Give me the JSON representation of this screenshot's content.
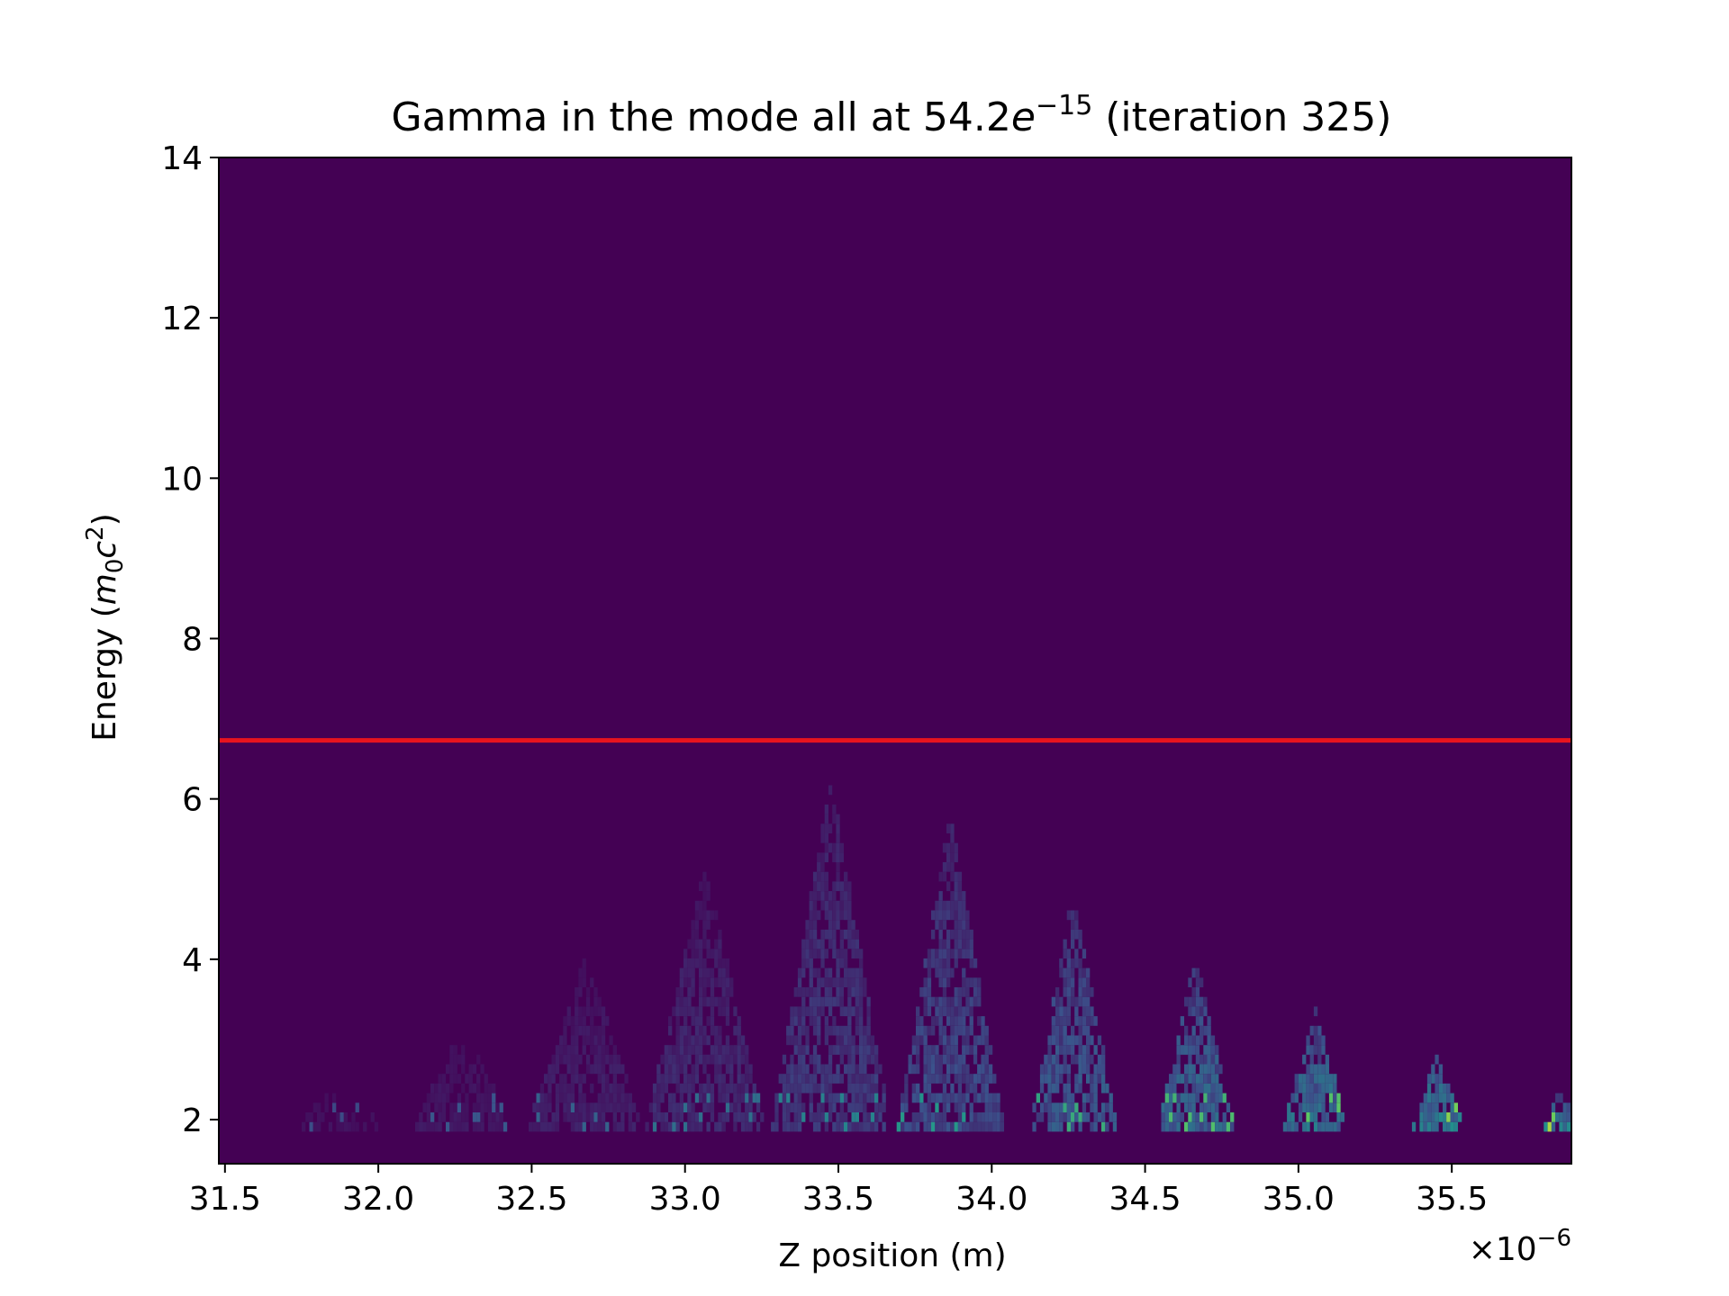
{
  "chart_data": {
    "type": "heatmap",
    "title": "Gamma in the mode all at 54.2e−15 (iteration 325)",
    "title_parts": {
      "prefix": "Gamma in the mode all at 54.2",
      "e": "e",
      "exp": "−15",
      "suffix": " (iteration 325)"
    },
    "xlabel": "Z position (m)",
    "ylabel": "Energy (m0c2)",
    "ylabel_parts": {
      "prefix": "Energy (",
      "m": "m",
      "msub": "0",
      "c": "c",
      "csup": "2",
      "suffix": ")"
    },
    "x_offset_label": "×10⁻⁶",
    "x_offset_parts": {
      "base": "×10",
      "exp": "−6"
    },
    "xlim": [
      31.48,
      35.89
    ],
    "ylim": [
      1.45,
      14.0
    ],
    "x_ticks": [
      "31.5",
      "32.0",
      "32.5",
      "33.0",
      "33.5",
      "34.0",
      "34.5",
      "35.0",
      "35.5"
    ],
    "x_tick_values": [
      31.5,
      32.0,
      32.5,
      33.0,
      33.5,
      34.0,
      34.5,
      35.0,
      35.5
    ],
    "y_ticks": [
      "2",
      "4",
      "6",
      "8",
      "10",
      "12",
      "14"
    ],
    "y_tick_values": [
      2,
      4,
      6,
      8,
      10,
      12,
      14
    ],
    "colormap": "viridis",
    "background_color": "#440154",
    "reference_line": {
      "y": 6.73,
      "color": "#e8141e"
    },
    "bunches": [
      {
        "z_center": 31.87,
        "peak_energy": 2.5,
        "base_halfwidth": 0.12,
        "intensity": 0.06
      },
      {
        "z_center": 32.27,
        "peak_energy": 3.1,
        "base_halfwidth": 0.15,
        "intensity": 0.09
      },
      {
        "z_center": 32.67,
        "peak_energy": 4.0,
        "base_halfwidth": 0.18,
        "intensity": 0.12
      },
      {
        "z_center": 33.06,
        "peak_energy": 5.1,
        "base_halfwidth": 0.19,
        "intensity": 0.16
      },
      {
        "z_center": 33.47,
        "peak_energy": 6.2,
        "base_halfwidth": 0.19,
        "intensity": 0.22
      },
      {
        "z_center": 33.86,
        "peak_energy": 5.8,
        "base_halfwidth": 0.17,
        "intensity": 0.28
      },
      {
        "z_center": 34.26,
        "peak_energy": 4.8,
        "base_halfwidth": 0.14,
        "intensity": 0.34
      },
      {
        "z_center": 34.66,
        "peak_energy": 4.0,
        "base_halfwidth": 0.12,
        "intensity": 0.4
      },
      {
        "z_center": 35.05,
        "peak_energy": 3.3,
        "base_halfwidth": 0.1,
        "intensity": 0.46
      },
      {
        "z_center": 35.45,
        "peak_energy": 2.75,
        "base_halfwidth": 0.08,
        "intensity": 0.52
      },
      {
        "z_center": 35.85,
        "peak_energy": 2.3,
        "base_halfwidth": 0.05,
        "intensity": 0.48
      }
    ]
  }
}
